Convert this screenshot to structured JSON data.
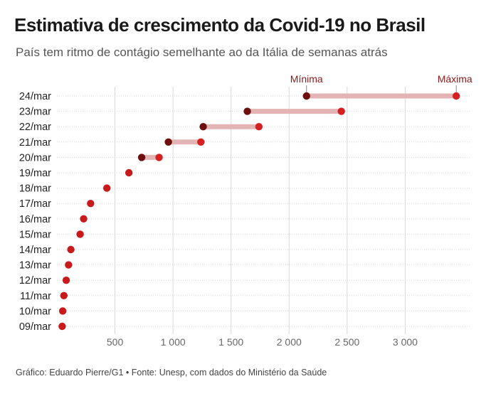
{
  "title": "Estimativa de crescimento da Covid-19 no Brasil",
  "subtitle": "País tem ritmo de contágio semelhante ao da Itália de semanas atrás",
  "source": "Gráfico: Eduardo Pierre/G1 • Fonte: Unesp, com dados do Ministério da Saúde",
  "colors": {
    "min": "#6e0f0f",
    "max": "#d42020",
    "single": "#c8191b",
    "band": "#e4b3b3",
    "grid": "#d8d8d8",
    "annotation": "#8b1a1a"
  },
  "chart_data": {
    "type": "dumbbell",
    "title": "Estimativa de crescimento da Covid-19 no Brasil",
    "subtitle": "País tem ritmo de contágio semelhante ao da Itália de semanas atrás",
    "xlabel": "",
    "ylabel": "",
    "xlim": [
      0,
      3500
    ],
    "xticks": [
      500,
      1000,
      1500,
      2000,
      2500,
      3000
    ],
    "xtick_labels": [
      "500",
      "1 000",
      "1 500",
      "2 000",
      "2 500",
      "3 000"
    ],
    "grid": true,
    "categories": [
      "24/mar",
      "23/mar",
      "22/mar",
      "21/mar",
      "20/mar",
      "19/mar",
      "18/mar",
      "17/mar",
      "16/mar",
      "15/mar",
      "14/mar",
      "13/mar",
      "12/mar",
      "11/mar",
      "10/mar",
      "09/mar"
    ],
    "series": [
      {
        "name": "Mínima",
        "values": [
          2150,
          1640,
          1260,
          960,
          730,
          null,
          null,
          null,
          null,
          null,
          null,
          null,
          null,
          null,
          null,
          null
        ]
      },
      {
        "name": "Máxima",
        "values": [
          3440,
          2450,
          1740,
          1240,
          880,
          null,
          null,
          null,
          null,
          null,
          null,
          null,
          null,
          null,
          null,
          null
        ]
      },
      {
        "name": "",
        "values": [
          null,
          null,
          null,
          null,
          null,
          620,
          430,
          290,
          230,
          200,
          120,
          100,
          80,
          60,
          50,
          45
        ]
      }
    ],
    "annotations": [
      "Mínima",
      "Máxima"
    ]
  }
}
